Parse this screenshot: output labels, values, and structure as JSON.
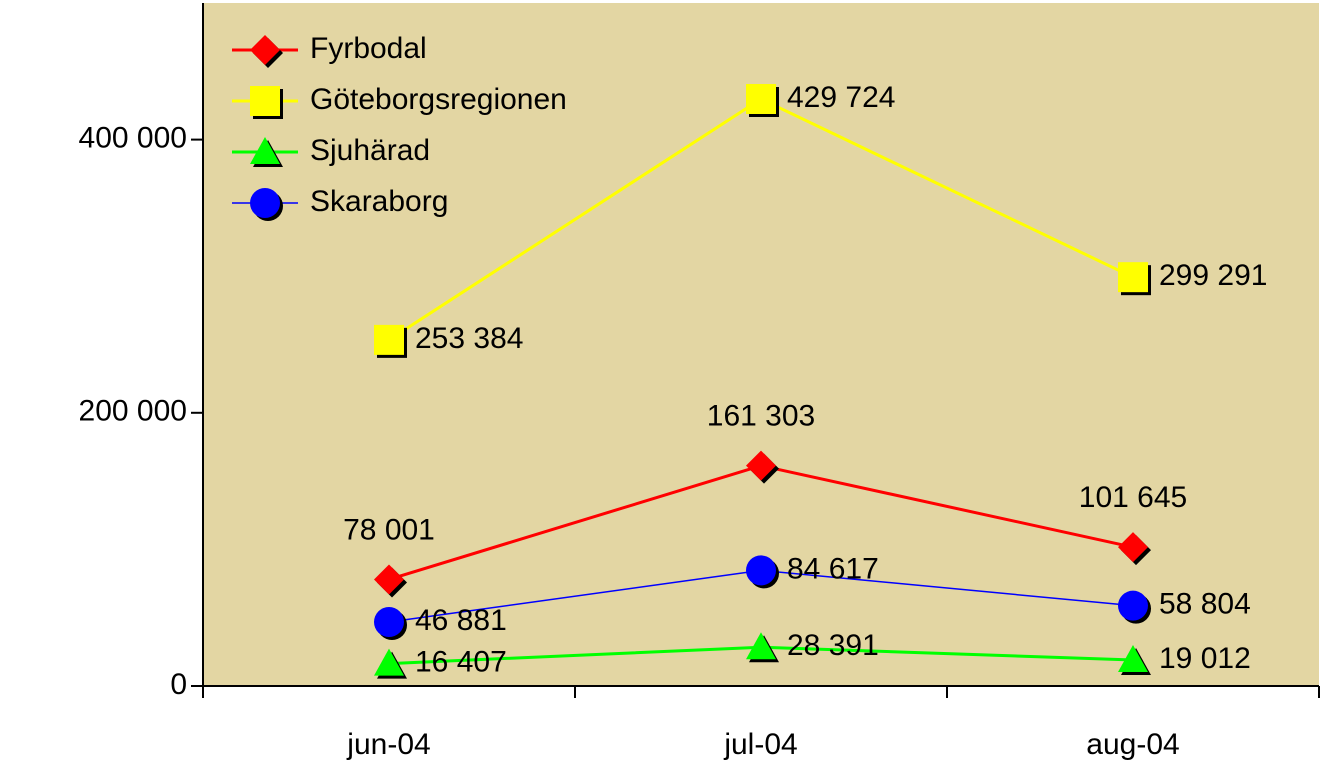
{
  "chart_data": {
    "type": "line",
    "categories": [
      "jun-04",
      "jul-04",
      "aug-04"
    ],
    "series": [
      {
        "name": "Fyrbodal",
        "color": "#ff0000",
        "marker": "diamond",
        "values": [
          78001,
          161303,
          101645
        ],
        "value_labels": [
          "78 001",
          "161 303",
          "101 645"
        ]
      },
      {
        "name": "Göteborgsregionen",
        "color": "#ffff00",
        "marker": "square",
        "values": [
          253384,
          429724,
          299291
        ],
        "value_labels": [
          "253 384",
          "429 724",
          "299 291"
        ]
      },
      {
        "name": "Sjuhärad",
        "color": "#00ff00",
        "marker": "triangle",
        "values": [
          16407,
          28391,
          19012
        ],
        "value_labels": [
          "16 407",
          "28 391",
          "19 012"
        ]
      },
      {
        "name": "Skaraborg",
        "color": "#0000ff",
        "marker": "circle",
        "values": [
          46881,
          84617,
          58804
        ],
        "value_labels": [
          "46 881",
          "84 617",
          "58 804"
        ]
      }
    ],
    "ylim": [
      0,
      500000
    ],
    "yticks": [
      0,
      {
        "value": 200000,
        "label": "200 000"
      },
      {
        "value": 400000,
        "label": "400 000"
      }
    ],
    "legend": "upper-left",
    "background": "#e3d6a3"
  }
}
